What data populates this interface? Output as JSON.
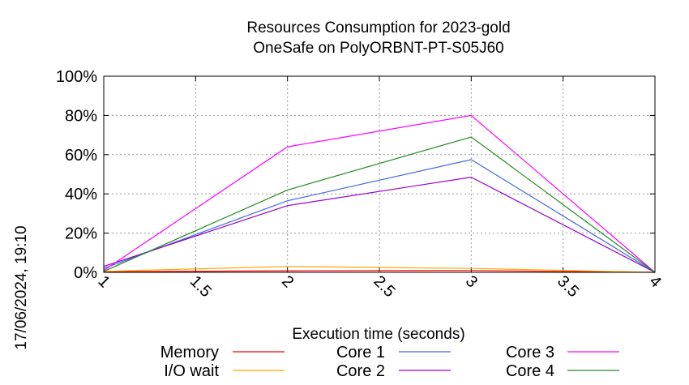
{
  "chart_data": {
    "type": "line",
    "title_line1": "Resources Consumption for 2023-gold",
    "title_line2": "OneSafe on PolyORBNT-PT-S05J60",
    "xlabel": "Execution time (seconds)",
    "ylabel": "",
    "side_label": "17/06/2024, 19:10",
    "xlim": [
      1,
      4
    ],
    "ylim": [
      0,
      100
    ],
    "xticks": [
      "1",
      "1.5",
      "2",
      "2.5",
      "3",
      "3.5",
      "4"
    ],
    "xtick_values": [
      1,
      1.5,
      2,
      2.5,
      3,
      3.5,
      4
    ],
    "yticks": [
      "0%",
      "20%",
      "40%",
      "60%",
      "80%",
      "100%"
    ],
    "ytick_values": [
      0,
      20,
      40,
      60,
      80,
      100
    ],
    "grid": true,
    "legend_position": "bottom",
    "series": [
      {
        "name": "Memory",
        "color": "#ff0000",
        "x": [
          1,
          2,
          3,
          4
        ],
        "y": [
          0.3,
          0.8,
          0.9,
          0
        ]
      },
      {
        "name": "I/O wait",
        "color": "#ffa500",
        "x": [
          1,
          2,
          3,
          4
        ],
        "y": [
          0.5,
          3,
          2,
          0
        ]
      },
      {
        "name": "Core 1",
        "color": "#4169e1",
        "x": [
          1,
          2,
          3,
          4
        ],
        "y": [
          2,
          36.5,
          57.5,
          0
        ]
      },
      {
        "name": "Core 2",
        "color": "#9400d3",
        "x": [
          1,
          2,
          3,
          4
        ],
        "y": [
          3,
          34,
          48.5,
          0
        ]
      },
      {
        "name": "Core 3",
        "color": "#ff00ff",
        "x": [
          1,
          2,
          3,
          4
        ],
        "y": [
          1,
          64,
          80,
          0
        ]
      },
      {
        "name": "Core 4",
        "color": "#228b22",
        "x": [
          1,
          2,
          3,
          4
        ],
        "y": [
          0.5,
          42,
          69,
          0
        ]
      }
    ]
  }
}
